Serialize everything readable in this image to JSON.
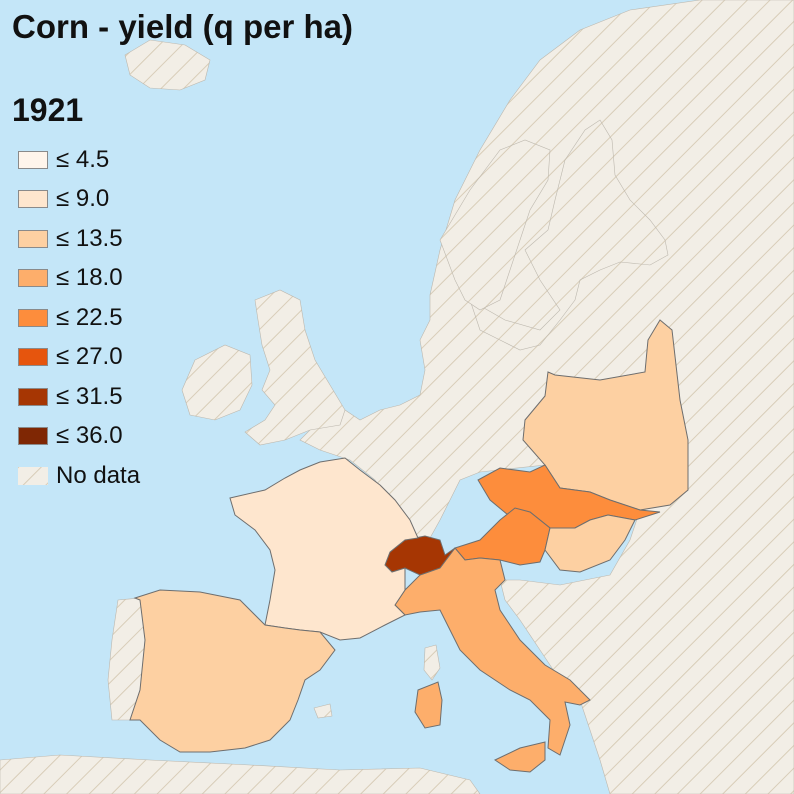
{
  "title": "Corn - yield (q per ha)",
  "year": "1921",
  "colors": {
    "sea": "#c4e6f8",
    "nodata_fill": "#f2eee6",
    "nodata_hatch": "#d8cdb8",
    "border": "#6e6e6e"
  },
  "legend": [
    {
      "label": "≤ 4.5",
      "color": "#fff5eb"
    },
    {
      "label": "≤ 9.0",
      "color": "#fee6ce"
    },
    {
      "label": "≤ 13.5",
      "color": "#fdd0a2"
    },
    {
      "label": "≤ 18.0",
      "color": "#fdae6b"
    },
    {
      "label": "≤ 22.5",
      "color": "#fd8d3c"
    },
    {
      "label": "≤ 27.0",
      "color": "#e6550d"
    },
    {
      "label": "≤ 31.5",
      "color": "#a63603"
    },
    {
      "label": "≤ 36.0",
      "color": "#7f2704"
    },
    {
      "label": "No data",
      "color": "hatch"
    }
  ],
  "regions": [
    {
      "name": "France",
      "class": "≤ 9.0"
    },
    {
      "name": "Spain",
      "class": "≤ 13.5"
    },
    {
      "name": "Switzerland",
      "class": "≤ 31.5"
    },
    {
      "name": "Italy",
      "class": "≤ 18.0"
    },
    {
      "name": "Austria",
      "class": "≤ 22.5"
    },
    {
      "name": "Czechoslovakia",
      "class": "≤ 22.5"
    },
    {
      "name": "Hungary",
      "class": "≤ 13.5"
    },
    {
      "name": "Poland",
      "class": "≤ 13.5"
    }
  ]
}
